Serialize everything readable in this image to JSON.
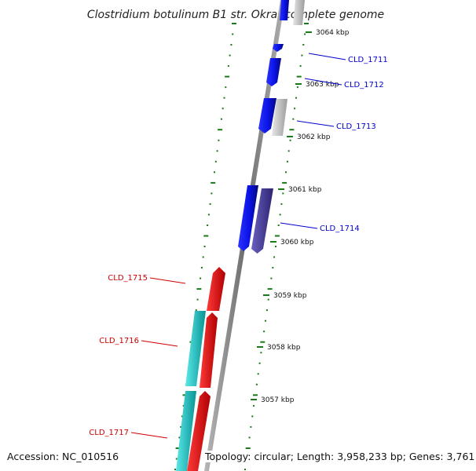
{
  "title": "Clostridium botulinum B1 str. Okra, complete genome",
  "footer": {
    "accession": "Accession: NC_010516",
    "topology": "Topology: circular; Length: 3,958,233 bp; Genes: 3,761"
  },
  "colors": {
    "background": "#ffffff",
    "backbone": "#8a8a8a",
    "tick_marks": "#1a7a1a",
    "gene_forward_primary": "#0a12e6",
    "gene_forward_alt": "#4a3f9c",
    "gene_forward_pseudo": "#c8c8c8",
    "gene_reverse_primary": "#ee0a0a",
    "gene_reverse_alt": "#1fc6c6",
    "label_forward": "#0000cc",
    "label_reverse": "#cc0000"
  },
  "ticks": [
    {
      "label": "3064 kbp"
    },
    {
      "label": "3063 kbp"
    },
    {
      "label": "3062 kbp"
    },
    {
      "label": "3061 kbp"
    },
    {
      "label": "3060 kbp"
    },
    {
      "label": "3059 kbp"
    },
    {
      "label": "3058 kbp"
    },
    {
      "label": "3057 kbp"
    }
  ],
  "genes": [
    {
      "locus": "CLD_1711",
      "strand": "forward"
    },
    {
      "locus": "CLD_1712",
      "strand": "forward"
    },
    {
      "locus": "CLD_1713",
      "strand": "forward"
    },
    {
      "locus": "CLD_1714",
      "strand": "forward"
    },
    {
      "locus": "CLD_1715",
      "strand": "reverse"
    },
    {
      "locus": "CLD_1716",
      "strand": "reverse"
    },
    {
      "locus": "CLD_1717",
      "strand": "reverse"
    }
  ]
}
